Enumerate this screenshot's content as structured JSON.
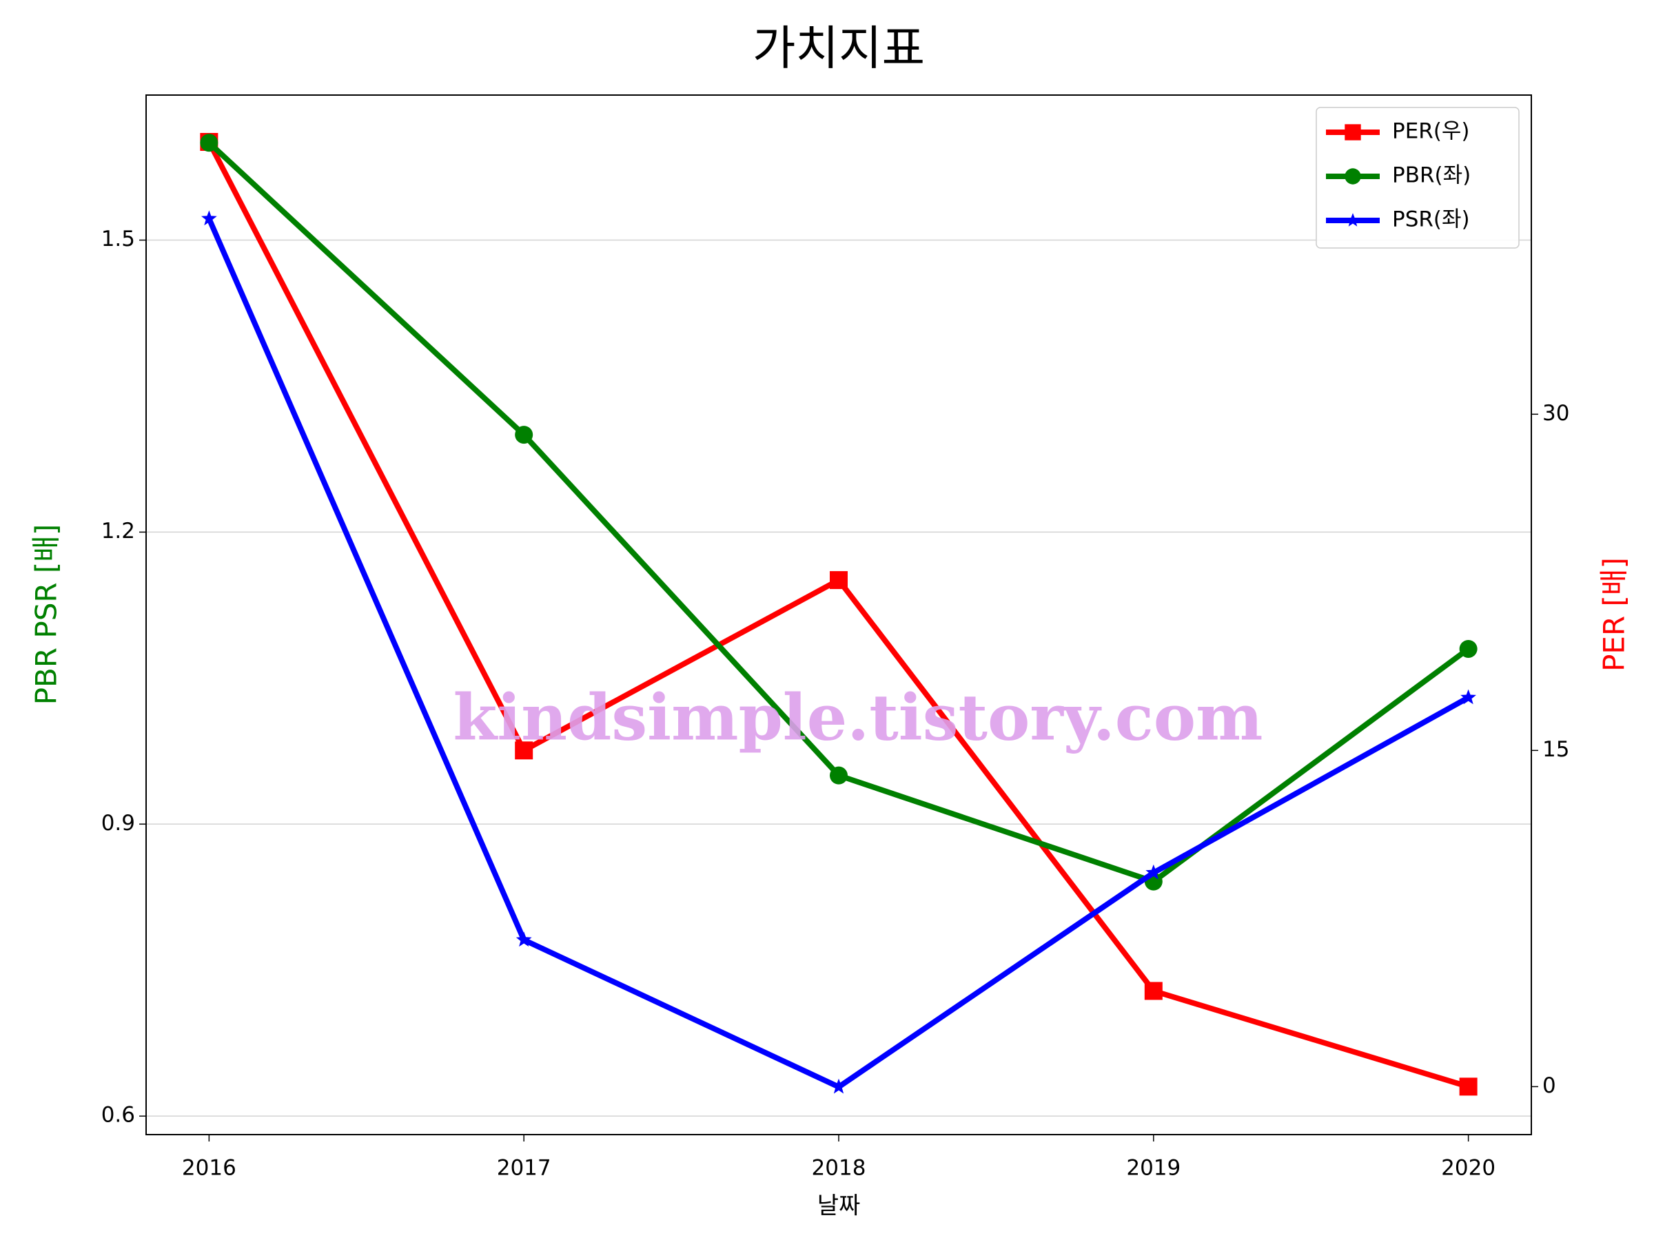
{
  "chart_data": {
    "type": "line",
    "title": "가치지표",
    "x_label": "날짜",
    "y_label": "PBR PSR [배]",
    "y2_label": "PER [배]",
    "y_label_color": "green",
    "y2_label_color": "red",
    "watermark": "kindsimple.tistory.com",
    "x": [
      2016,
      2017,
      2018,
      2019,
      2020
    ],
    "xlim": [
      2015.8,
      2020.2
    ],
    "xticks": [
      2016,
      2017,
      2018,
      2019,
      2020
    ],
    "ylim": [
      0.581,
      1.649
    ],
    "yticks": [
      0.6,
      0.9,
      1.2,
      1.5
    ],
    "y2lim": [
      -2.14,
      44.24
    ],
    "y2ticks": [
      0,
      15,
      30
    ],
    "grid": true,
    "legend": "upper right",
    "series": [
      {
        "name": "PER(우)",
        "color": "red",
        "marker": "square",
        "axis": "y2",
        "values": [
          42.15,
          15.0,
          22.6,
          4.27,
          0
        ]
      },
      {
        "name": "PBR(좌)",
        "color": "green",
        "marker": "circle",
        "values": [
          1.6,
          1.3,
          0.95,
          0.841,
          1.08
        ]
      },
      {
        "name": "PSR(좌)",
        "color": "blue",
        "marker": "star",
        "values": [
          1.522,
          0.781,
          0.63,
          0.85,
          1.03
        ]
      }
    ]
  }
}
